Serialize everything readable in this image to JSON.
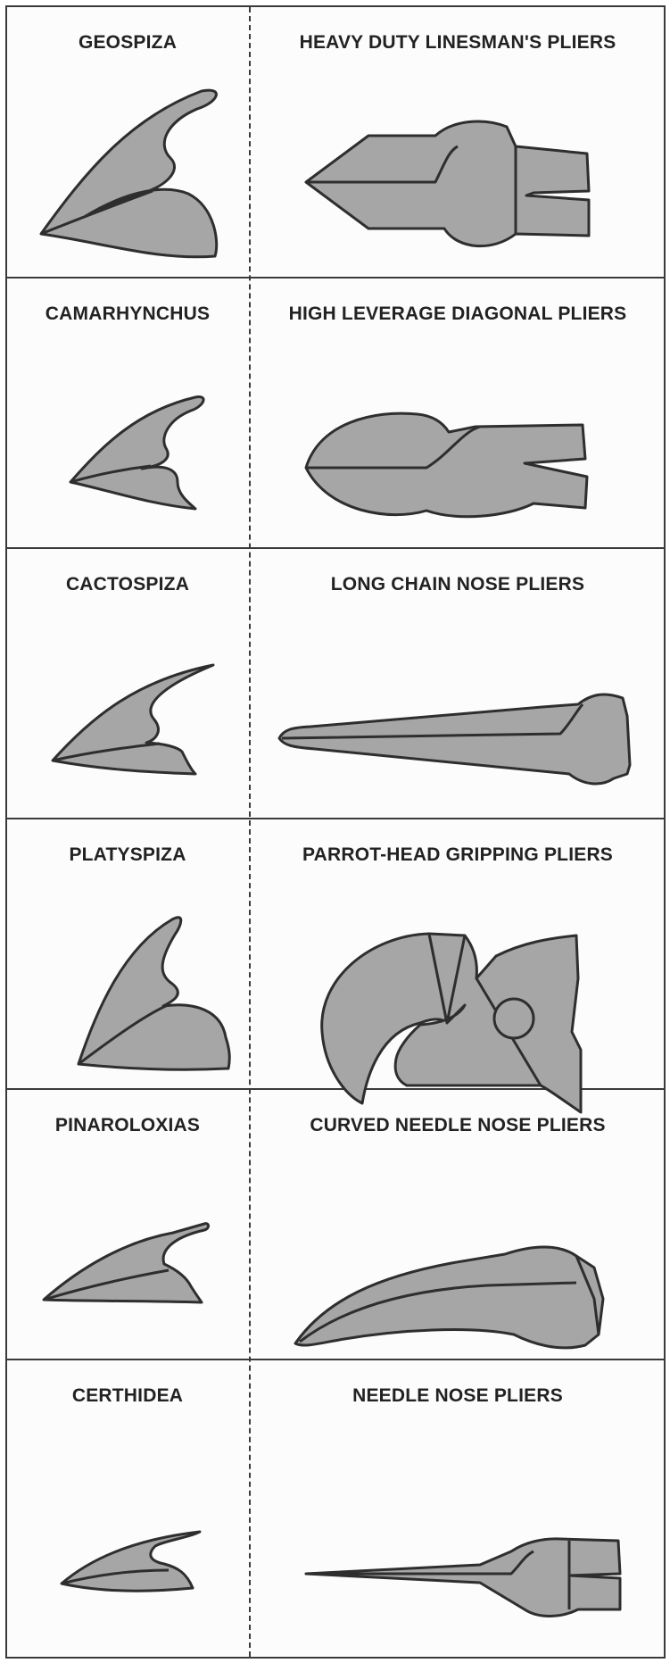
{
  "rows": [
    {
      "bird": "GEOSPIZA",
      "tool": "HEAVY DUTY LINESMAN'S PLIERS"
    },
    {
      "bird": "CAMARHYNCHUS",
      "tool": "HIGH LEVERAGE DIAGONAL PLIERS"
    },
    {
      "bird": "CACTOSPIZA",
      "tool": "LONG CHAIN NOSE PLIERS"
    },
    {
      "bird": "PLATYSPIZA",
      "tool": "PARROT-HEAD GRIPPING PLIERS"
    },
    {
      "bird": "PINAROLOXIAS",
      "tool": "CURVED NEEDLE NOSE PLIERS"
    },
    {
      "bird": "CERTHIDEA",
      "tool": "NEEDLE NOSE PLIERS"
    }
  ],
  "colors": {
    "fill": "#a6a6a6",
    "stroke": "#2e2e2e",
    "background": "#fcfcfc"
  }
}
